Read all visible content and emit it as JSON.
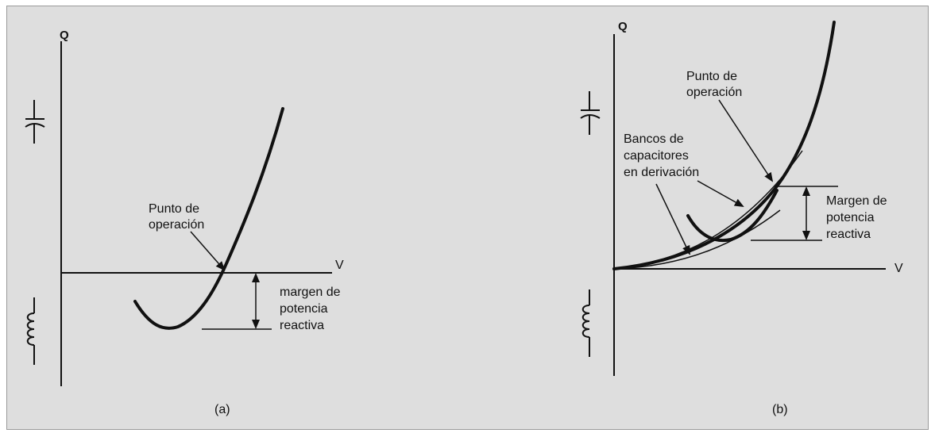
{
  "panel_a": {
    "axis_y": "Q",
    "axis_x": "V",
    "operating_point": [
      "Punto de",
      "operación"
    ],
    "margin": [
      "margen de",
      "potencia",
      "reactiva"
    ],
    "caption": "(a)"
  },
  "panel_b": {
    "axis_y": "Q",
    "axis_x": "V",
    "operating_point": [
      "Punto de",
      "operación"
    ],
    "capacitor_banks": [
      "Bancos de",
      "capacitores",
      "en derivación"
    ],
    "margin": [
      "Margen de",
      "potencia",
      "reactiva"
    ],
    "caption": "(b)"
  },
  "icons": {
    "capacitor": "capacitor-symbol-icon",
    "inductor": "inductor-symbol-icon"
  }
}
